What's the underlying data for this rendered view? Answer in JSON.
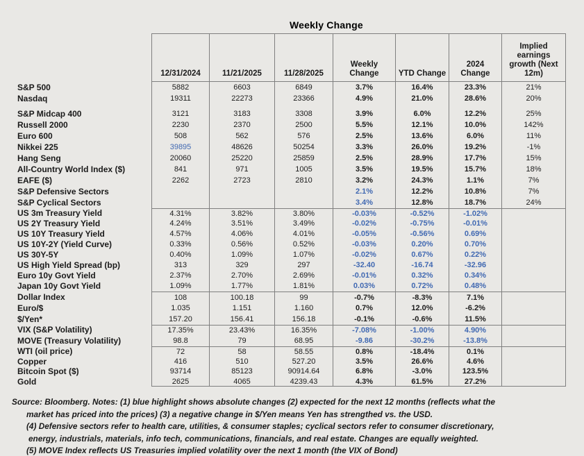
{
  "title": "Weekly Change",
  "colors": {
    "background": "#e9e8e5",
    "border": "#7f7f7f",
    "highlight_blue": "#4169b2",
    "text": "#1a1a1a"
  },
  "table": {
    "columns": [
      "12/31/2024",
      "11/21/2025",
      "11/28/2025",
      "Weekly Change",
      "YTD Change",
      "2024 Change",
      "Implied earnings growth (Next 12m)"
    ],
    "rows": [
      {
        "label": "S&P 500",
        "group": 0,
        "values": [
          "5882",
          "6603",
          "6849",
          "3.7%",
          "16.4%",
          "23.3%",
          "21%"
        ],
        "blue": []
      },
      {
        "label": "Nasdaq",
        "group": 0,
        "values": [
          "19311",
          "22273",
          "23366",
          "4.9%",
          "21.0%",
          "28.6%",
          "20%"
        ],
        "blue": []
      },
      {
        "label": "S&P Midcap 400",
        "group": 0,
        "gap": true,
        "values": [
          "3121",
          "3183",
          "3308",
          "3.9%",
          "6.0%",
          "12.2%",
          "25%"
        ],
        "blue": []
      },
      {
        "label": "Russell 2000",
        "group": 0,
        "values": [
          "2230",
          "2370",
          "2500",
          "5.5%",
          "12.1%",
          "10.0%",
          "142%"
        ],
        "blue": []
      },
      {
        "label": "Euro 600",
        "group": 0,
        "values": [
          "508",
          "562",
          "576",
          "2.5%",
          "13.6%",
          "6.0%",
          "11%"
        ],
        "blue": []
      },
      {
        "label": "Nikkei 225",
        "group": 0,
        "values": [
          "39895",
          "48626",
          "50254",
          "3.3%",
          "26.0%",
          "19.2%",
          "-1%"
        ],
        "blue": [
          0
        ]
      },
      {
        "label": "Hang Seng",
        "group": 0,
        "values": [
          "20060",
          "25220",
          "25859",
          "2.5%",
          "28.9%",
          "17.7%",
          "15%"
        ],
        "blue": []
      },
      {
        "label": "All-Country World Index ($)",
        "group": 0,
        "values": [
          "841",
          "971",
          "1005",
          "3.5%",
          "19.5%",
          "15.7%",
          "18%"
        ],
        "blue": []
      },
      {
        "label": "EAFE ($)",
        "group": 0,
        "values": [
          "2262",
          "2723",
          "2810",
          "3.2%",
          "24.3%",
          "1.1%",
          "7%"
        ],
        "blue": []
      },
      {
        "label": "S&P Defensive Sectors",
        "group": 0,
        "values": [
          "",
          "",
          "",
          "2.1%",
          "12.2%",
          "10.8%",
          "7%"
        ],
        "blue": [
          3
        ]
      },
      {
        "label": "S&P Cyclical Sectors",
        "group": 0,
        "values": [
          "",
          "",
          "",
          "3.4%",
          "12.8%",
          "18.7%",
          "24%"
        ],
        "blue": [
          3
        ]
      },
      {
        "label": "US 3m Treasury Yield",
        "group": 1,
        "values": [
          "4.31%",
          "3.82%",
          "3.80%",
          "-0.03%",
          "-0.52%",
          "-1.02%",
          ""
        ],
        "blue": [
          3,
          4,
          5
        ]
      },
      {
        "label": "US 2Y Treasury Yield",
        "group": 1,
        "values": [
          "4.24%",
          "3.51%",
          "3.49%",
          "-0.02%",
          "-0.75%",
          "-0.01%",
          ""
        ],
        "blue": [
          3,
          4,
          5
        ]
      },
      {
        "label": "US 10Y Treasury Yield",
        "group": 1,
        "values": [
          "4.57%",
          "4.06%",
          "4.01%",
          "-0.05%",
          "-0.56%",
          "0.69%",
          ""
        ],
        "blue": [
          3,
          4,
          5
        ]
      },
      {
        "label": "US 10Y-2Y (Yield Curve)",
        "group": 1,
        "values": [
          "0.33%",
          "0.56%",
          "0.52%",
          "-0.03%",
          "0.20%",
          "0.70%",
          ""
        ],
        "blue": [
          3,
          4,
          5
        ]
      },
      {
        "label": "US 30Y-5Y",
        "group": 1,
        "values": [
          "0.40%",
          "1.09%",
          "1.07%",
          "-0.02%",
          "0.67%",
          "0.22%",
          ""
        ],
        "blue": [
          3,
          4,
          5
        ]
      },
      {
        "label": "US High Yield Spread (bp)",
        "group": 1,
        "values": [
          "313",
          "329",
          "297",
          "-32.40",
          "-16.74",
          "-32.96",
          ""
        ],
        "blue": [
          3,
          4,
          5
        ]
      },
      {
        "label": "Euro 10y Govt Yield",
        "group": 1,
        "values": [
          "2.37%",
          "2.70%",
          "2.69%",
          "-0.01%",
          "0.32%",
          "0.34%",
          ""
        ],
        "blue": [
          3,
          4,
          5
        ]
      },
      {
        "label": "Japan 10y Govt Yield",
        "group": 1,
        "values": [
          "1.09%",
          "1.77%",
          "1.81%",
          "0.03%",
          "0.72%",
          "0.48%",
          ""
        ],
        "blue": [
          3,
          4,
          5
        ]
      },
      {
        "label": "Dollar Index",
        "group": 2,
        "values": [
          "108",
          "100.18",
          "99",
          "-0.7%",
          "-8.3%",
          "7.1%",
          ""
        ],
        "blue": []
      },
      {
        "label": "Euro/$",
        "group": 2,
        "values": [
          "1.035",
          "1.151",
          "1.160",
          "0.7%",
          "12.0%",
          "-6.2%",
          ""
        ],
        "blue": []
      },
      {
        "label": "$/Yen*",
        "group": 2,
        "values": [
          "157.20",
          "156.41",
          "156.18",
          "-0.1%",
          "-0.6%",
          "11.5%",
          ""
        ],
        "blue": []
      },
      {
        "label": "VIX (S&P Volatility)",
        "group": 3,
        "values": [
          "17.35%",
          "23.43%",
          "16.35%",
          "-7.08%",
          "-1.00%",
          "4.90%",
          ""
        ],
        "blue": [
          3,
          4,
          5
        ]
      },
      {
        "label": "MOVE (Treasury Volatility)",
        "group": 3,
        "values": [
          "98.8",
          "79",
          "68.95",
          "-9.86",
          "-30.2%",
          "-13.8%",
          ""
        ],
        "blue": [
          3,
          4,
          5
        ]
      },
      {
        "label": "WTI (oil price)",
        "group": 4,
        "values": [
          "72",
          "58",
          "58.55",
          "0.8%",
          "-18.4%",
          "0.1%",
          ""
        ],
        "blue": []
      },
      {
        "label": "Copper",
        "group": 4,
        "values": [
          "416",
          "510",
          "527.20",
          "3.5%",
          "26.6%",
          "4.6%",
          ""
        ],
        "blue": []
      },
      {
        "label": "Bitcoin Spot ($)",
        "group": 4,
        "values": [
          "93714",
          "85123",
          "90914.64",
          "6.8%",
          "-3.0%",
          "123.5%",
          ""
        ],
        "blue": []
      },
      {
        "label": "Gold",
        "group": 4,
        "values": [
          "2625",
          "4065",
          "4239.43",
          "4.3%",
          "61.5%",
          "27.2%",
          ""
        ],
        "blue": []
      }
    ]
  },
  "notes": [
    "Source: Bloomberg. Notes: (1) blue highlight shows absolute changes (2) expected for the next 12 months (reflects what the",
    "market has priced into the prices) (3) a negative change in $/Yen means Yen has strengthed vs. the USD.",
    "(4) Defensive sectors refer to health care, utilities, & consumer staples; cyclical sectors refer to consumer discretionary,",
    "energy, industrials, materials, info tech, communications, financials, and real estate. Changes are equally weighted.",
    "(5) MOVE Index reflects US Treasuries implied volatility over the next 1 month (the VIX of Bond)"
  ]
}
